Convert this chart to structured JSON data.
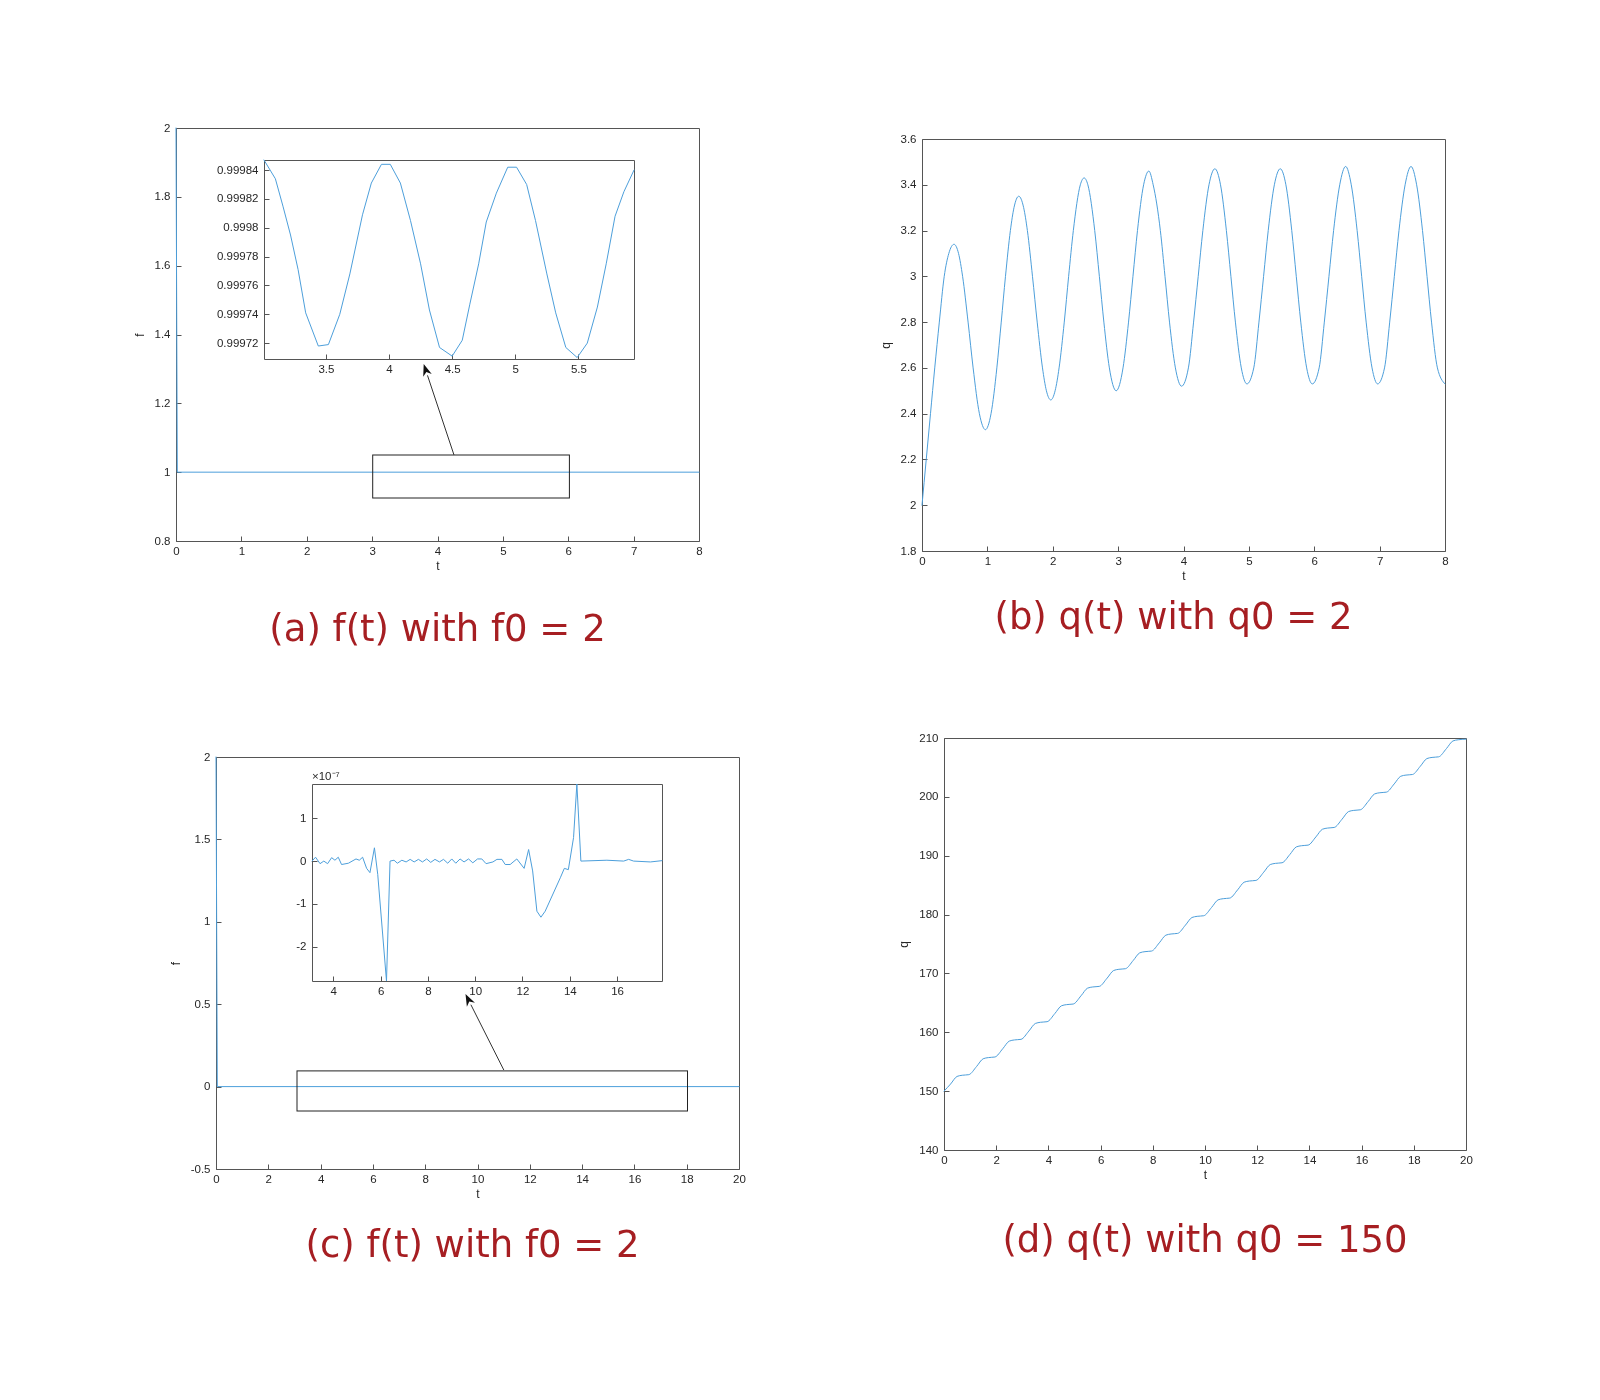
{
  "chart_data": [
    {
      "type": "line",
      "title": "(a) f(t) with f0 = 2",
      "xlabel": "t",
      "ylabel": "f",
      "x": [
        0,
        0.02,
        8
      ],
      "series": [
        {
          "color": "#4d9fdb",
          "values": [
            2,
            1,
            1
          ]
        }
      ],
      "xlim": [
        0,
        8
      ],
      "ylim": [
        0.8,
        2
      ],
      "xticks": [
        0,
        1,
        2,
        3,
        4,
        5,
        6,
        7,
        8
      ],
      "yticks": [
        0.8,
        1,
        1.2,
        1.4,
        1.6,
        1.8,
        2
      ]
    },
    {
      "type": "line",
      "x": [
        3.01,
        3.1,
        3.16,
        3.22,
        3.28,
        3.34,
        3.44,
        3.52,
        3.61,
        3.69,
        3.79,
        3.86,
        3.94,
        4.01,
        4.09,
        4.17,
        4.25,
        4.32,
        4.4,
        4.5,
        4.58,
        4.64,
        4.71,
        4.77,
        4.85,
        4.94,
        5.01,
        5.09,
        5.16,
        5.25,
        5.32,
        5.4,
        5.49,
        5.57,
        5.65,
        5.72,
        5.79,
        5.86,
        5.94
      ],
      "series": [
        {
          "color": "#4d9fdb",
          "values": [
            0.999847,
            0.999834,
            0.999815,
            0.999795,
            0.999771,
            0.999741,
            0.999718,
            0.999719,
            0.99974,
            0.999768,
            0.999809,
            0.999831,
            0.999844,
            0.999844,
            0.999831,
            0.999805,
            0.999775,
            0.999743,
            0.999717,
            0.999711,
            0.999722,
            0.999747,
            0.999775,
            0.999804,
            0.999824,
            0.999842,
            0.999842,
            0.99983,
            0.999805,
            0.999768,
            0.999741,
            0.999717,
            0.99971,
            0.99972,
            0.999745,
            0.999775,
            0.999808,
            0.999825,
            0.99984
          ]
        }
      ],
      "xlim": [
        3.01,
        5.94
      ],
      "ylim": [
        0.999709,
        0.999847
      ],
      "xticks": [
        3.5,
        4,
        4.5,
        5,
        5.5
      ],
      "yticks": [
        0.99972,
        0.99974,
        0.99976,
        0.99978,
        0.9998,
        0.99982,
        0.99984
      ]
    },
    {
      "type": "line",
      "title": "(b) q(t) with q0 = 2",
      "xlabel": "t",
      "ylabel": "q",
      "x": [
        0,
        0.065,
        0.13,
        0.195,
        0.265,
        0.34,
        0.41,
        0.49,
        0.559,
        0.621,
        0.705,
        0.782,
        0.878,
        0.97,
        1.056,
        1.145,
        1.212,
        1.277,
        1.352,
        1.407,
        1.48,
        1.555,
        1.612,
        1.69,
        1.762,
        1.843,
        1.903,
        1.97,
        2.036,
        2.097,
        2.176,
        2.243,
        2.315,
        2.422,
        2.48,
        2.537,
        2.642,
        2.713,
        2.782,
        2.866,
        2.97,
        3.075,
        3.159,
        3.227,
        3.296,
        3.39,
        3.47,
        3.536,
        3.646,
        3.717,
        3.786,
        3.876,
        3.97,
        4.075,
        4.154,
        4.225,
        4.296,
        4.39,
        4.48,
        4.566,
        4.656,
        4.725,
        4.794,
        4.884,
        4.97,
        5.075,
        5.154,
        5.225,
        5.296,
        5.39,
        5.48,
        5.566,
        5.656,
        5.725,
        5.794,
        5.884,
        5.97,
        6.075,
        6.154,
        6.225,
        6.296,
        6.39,
        6.48,
        6.566,
        6.656,
        6.725,
        6.794,
        6.884,
        6.97,
        7.075,
        7.154,
        7.225,
        7.296,
        7.39,
        7.48,
        7.566,
        7.656,
        7.725,
        7.794,
        7.884,
        8
      ],
      "series": [
        {
          "color": "#4d9fdb",
          "values": [
            2,
            2.2,
            2.4,
            2.6,
            2.8,
            3.0,
            3.1,
            3.14,
            3.1,
            3.0,
            2.8,
            2.6,
            2.4,
            2.33,
            2.4,
            2.6,
            2.8,
            3.0,
            3.2,
            3.3,
            3.35,
            3.3,
            3.2,
            3.0,
            2.8,
            2.6,
            2.5,
            2.46,
            2.5,
            2.6,
            2.8,
            3.0,
            3.2,
            3.4,
            3.43,
            3.4,
            3.2,
            3.0,
            2.8,
            2.6,
            2.5,
            2.6,
            2.8,
            3.0,
            3.2,
            3.4,
            3.46,
            3.4,
            3.2,
            3.0,
            2.8,
            2.6,
            2.52,
            2.6,
            2.8,
            3.0,
            3.2,
            3.4,
            3.47,
            3.4,
            3.2,
            3.0,
            2.8,
            2.6,
            2.53,
            2.6,
            2.8,
            3.0,
            3.2,
            3.4,
            3.47,
            3.4,
            3.2,
            3.0,
            2.8,
            2.6,
            2.53,
            2.6,
            2.8,
            3.0,
            3.2,
            3.4,
            3.48,
            3.4,
            3.2,
            3.0,
            2.8,
            2.6,
            2.53,
            2.6,
            2.8,
            3.0,
            3.2,
            3.4,
            3.48,
            3.4,
            3.2,
            3.0,
            2.8,
            2.6,
            2.53
          ]
        }
      ],
      "xlim": [
        0,
        8
      ],
      "ylim": [
        1.8,
        3.6
      ],
      "xticks": [
        0,
        1,
        2,
        3,
        4,
        5,
        6,
        7,
        8
      ],
      "yticks": [
        1.8,
        2,
        2.2,
        2.4,
        2.6,
        2.8,
        3,
        3.2,
        3.4,
        3.6
      ]
    },
    {
      "type": "line",
      "title": "(c) f(t) with f0 = 2",
      "xlabel": "t",
      "ylabel": "f",
      "x": [
        0,
        0.05,
        20
      ],
      "series": [
        {
          "color": "#4d9fdb",
          "values": [
            2,
            0,
            0
          ]
        }
      ],
      "xlim": [
        0,
        20
      ],
      "ylim": [
        -0.5,
        2
      ],
      "xticks": [
        0,
        2,
        4,
        6,
        8,
        10,
        12,
        14,
        16,
        18,
        20
      ],
      "yticks": [
        -0.5,
        0,
        0.5,
        1,
        1.5,
        2
      ]
    },
    {
      "type": "line",
      "annotations": [
        "×10⁻⁷"
      ],
      "x": [
        3.1,
        3.25,
        3.44,
        3.6,
        3.76,
        3.93,
        4.07,
        4.21,
        4.35,
        4.64,
        4.96,
        5.1,
        5.24,
        5.41,
        5.55,
        5.74,
        5.88,
        6.25,
        6.4,
        6.57,
        6.71,
        6.9,
        7.08,
        7.25,
        7.42,
        7.6,
        7.77,
        7.95,
        8.12,
        8.3,
        8.49,
        8.66,
        8.84,
        9.01,
        9.18,
        9.36,
        9.53,
        9.72,
        9.9,
        10.1,
        10.28,
        10.46,
        10.75,
        10.92,
        11.13,
        11.27,
        11.48,
        11.76,
        12.07,
        12.26,
        12.43,
        12.61,
        12.78,
        12.96,
        13.6,
        13.77,
        13.94,
        14.16,
        14.3,
        14.47,
        15.57,
        16.28,
        16.49,
        16.7,
        17.41,
        17.9
      ],
      "series": [
        {
          "color": "#4d9fdb",
          "values": [
            0,
            0.09,
            -0.06,
            0,
            -0.06,
            0.08,
            0.02,
            0.09,
            -0.08,
            -0.05,
            0.05,
            0.02,
            0.09,
            -0.17,
            -0.27,
            0.31,
            -0.31,
            -2.8,
            0,
            0.02,
            -0.05,
            0.02,
            -0.02,
            0.04,
            -0.02,
            0.04,
            -0.02,
            0.05,
            -0.03,
            0.04,
            -0.02,
            0.04,
            -0.05,
            0.05,
            -0.05,
            0.05,
            -0.02,
            0.05,
            -0.04,
            0.05,
            0.05,
            -0.06,
            -0.02,
            0.04,
            0.04,
            -0.08,
            -0.08,
            0.05,
            -0.17,
            0.27,
            -0.23,
            -1.17,
            -1.31,
            -1.17,
            -0.39,
            -0.17,
            -0.2,
            0.55,
            1.8,
            0,
            0.02,
            0,
            0.04,
            0,
            -0.02,
            0.01
          ]
        }
      ],
      "xlim": [
        3.1,
        17.9
      ],
      "ylim": [
        -2.8,
        1.8
      ],
      "xticks": [
        4,
        6,
        8,
        10,
        12,
        14,
        16
      ],
      "yticks": [
        -2,
        -1,
        0,
        1
      ]
    },
    {
      "type": "line",
      "title": "(d) q(t) with q0 = 150",
      "xlabel": "t",
      "ylabel": "q",
      "x": [
        0,
        0.25,
        0.5,
        0.7,
        0.95,
        1.25,
        1.5,
        1.7,
        1.95,
        2.25,
        2.5,
        2.7,
        2.95,
        3.25,
        3.5,
        3.7,
        3.95,
        4.25,
        4.5,
        4.7,
        4.95,
        5.25,
        5.5,
        5.7,
        5.95,
        6.25,
        6.5,
        6.7,
        6.95,
        7.25,
        7.5,
        7.7,
        7.95,
        8.25,
        8.5,
        8.7,
        8.95,
        9.25,
        9.5,
        9.7,
        9.95,
        10.25,
        10.5,
        10.7,
        10.95,
        11.25,
        11.5,
        11.7,
        11.95,
        12.25,
        12.5,
        12.7,
        12.95,
        13.25,
        13.5,
        13.7,
        13.95,
        14.25,
        14.5,
        14.7,
        14.95,
        15.25,
        15.5,
        15.7,
        15.95,
        16.25,
        16.5,
        16.7,
        16.95,
        17.25,
        17.5,
        17.7,
        17.95,
        18.25,
        18.5,
        18.7,
        18.95,
        19.25,
        19.5,
        19.7,
        20
      ],
      "series": [
        {
          "color": "#4d9fdb",
          "values": [
            150,
            151.2,
            152.5,
            152.7,
            152.8,
            154.2,
            155.5,
            155.7,
            155.8,
            157.2,
            158.5,
            158.7,
            158.8,
            160.2,
            161.5,
            161.7,
            161.8,
            163.2,
            164.5,
            164.7,
            164.8,
            166.2,
            167.5,
            167.7,
            167.8,
            169.2,
            170.5,
            170.7,
            170.8,
            172.2,
            173.5,
            173.7,
            173.8,
            175.2,
            176.5,
            176.7,
            176.8,
            178.2,
            179.5,
            179.7,
            179.8,
            181.2,
            182.5,
            182.7,
            182.8,
            184.2,
            185.5,
            185.7,
            185.8,
            187.2,
            188.5,
            188.7,
            188.8,
            190.2,
            191.5,
            191.7,
            191.8,
            193.2,
            194.5,
            194.7,
            194.8,
            196.2,
            197.5,
            197.7,
            197.8,
            199.2,
            200.5,
            200.7,
            200.8,
            202.2,
            203.5,
            203.7,
            203.8,
            205.2,
            206.5,
            206.7,
            206.8,
            208.2,
            209.5,
            209.7,
            209.8
          ]
        }
      ],
      "xlim": [
        0,
        20
      ],
      "ylim": [
        140,
        210
      ],
      "xticks": [
        0,
        2,
        4,
        6,
        8,
        10,
        12,
        14,
        16,
        18,
        20
      ],
      "yticks": [
        140,
        150,
        160,
        170,
        180,
        190,
        200,
        210
      ]
    }
  ]
}
